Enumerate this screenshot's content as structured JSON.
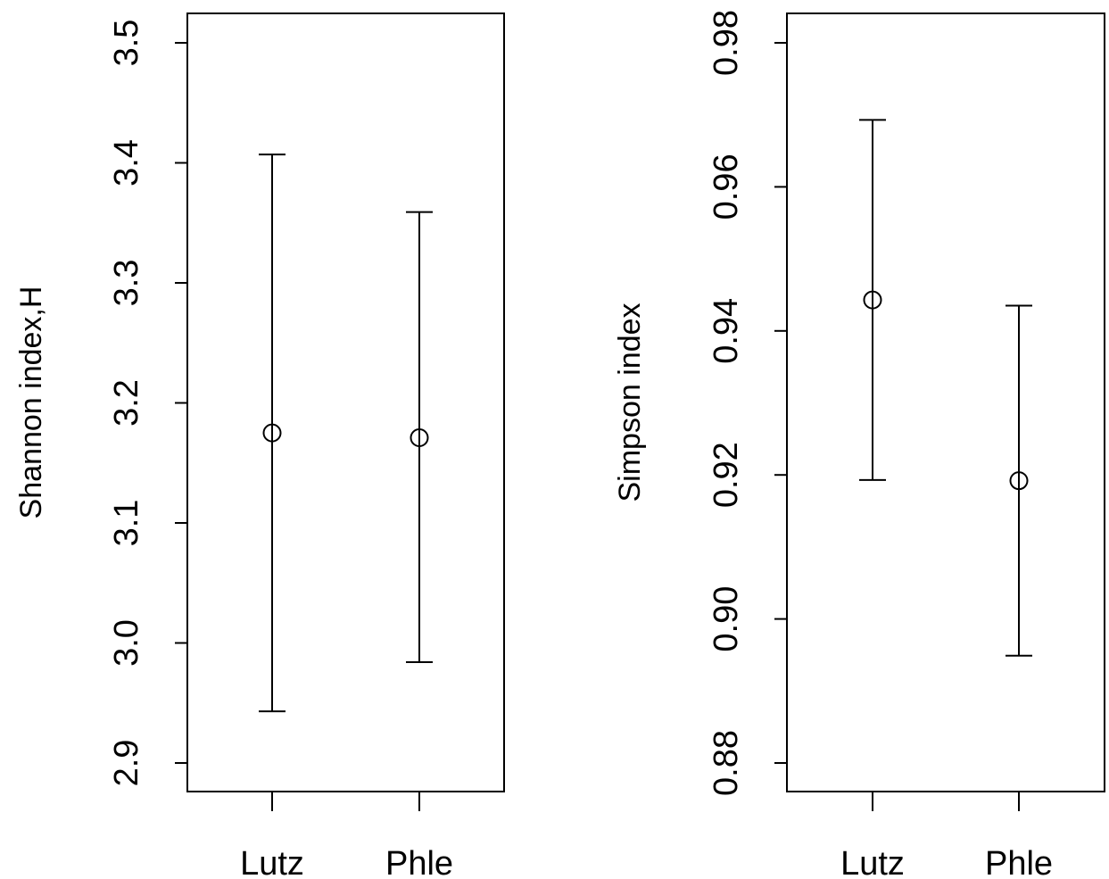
{
  "chart_data": [
    {
      "type": "scatter",
      "title": "",
      "xlabel": "",
      "ylabel": "Shannon index,H",
      "ylim": [
        2.9,
        3.5
      ],
      "yticks": [
        "2.9",
        "3.0",
        "3.1",
        "3.2",
        "3.3",
        "3.4",
        "3.5"
      ],
      "categories": [
        "Lutz",
        "Phle"
      ],
      "values": [
        3.175,
        3.171
      ],
      "error_low": [
        2.943,
        2.984
      ],
      "error_high": [
        3.407,
        3.359
      ],
      "grid": false
    },
    {
      "type": "scatter",
      "title": "",
      "xlabel": "",
      "ylabel": "Simpson index",
      "ylim": [
        0.88,
        0.98
      ],
      "yticks": [
        "0.88",
        "0.90",
        "0.92",
        "0.94",
        "0.96",
        "0.98"
      ],
      "categories": [
        "Lutz",
        "Phle"
      ],
      "values": [
        0.9443,
        0.9192
      ],
      "error_low": [
        0.9193,
        0.8949
      ],
      "error_high": [
        0.9693,
        0.9435
      ],
      "grid": false
    }
  ]
}
